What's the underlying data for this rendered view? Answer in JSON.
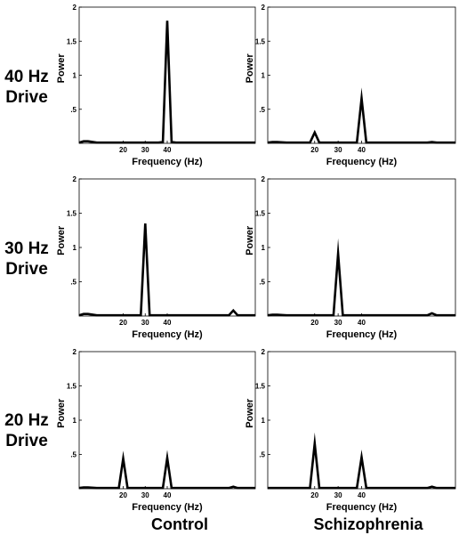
{
  "row_labels": [
    {
      "line1": "40 Hz",
      "line2": "Drive"
    },
    {
      "line1": "30 Hz",
      "line2": "Drive"
    },
    {
      "line1": "20 Hz",
      "line2": "Drive"
    }
  ],
  "column_labels": [
    "Control",
    "Schizophrenia"
  ],
  "chart_data": [
    {
      "type": "line",
      "panel": "40 Hz Drive / Control",
      "xlabel": "Frequency (Hz)",
      "ylabel": "Power",
      "xlim": [
        0,
        80
      ],
      "ylim": [
        0,
        2
      ],
      "xticks": [
        20,
        30,
        40
      ],
      "yticks": [
        0.5,
        1,
        1.5,
        2
      ],
      "ytick_labels": [
        ".5",
        "1",
        "1.5",
        "2"
      ],
      "grid": false,
      "x": [
        0,
        2,
        4,
        8,
        36,
        38,
        40,
        42,
        44,
        80
      ],
      "y": [
        0.01,
        0.03,
        0.03,
        0.01,
        0.01,
        0.02,
        1.8,
        0.02,
        0.01,
        0.01
      ]
    },
    {
      "type": "line",
      "panel": "40 Hz Drive / Schizophrenia",
      "xlabel": "Frequency (Hz)",
      "ylabel": "Power",
      "xlim": [
        0,
        80
      ],
      "ylim": [
        0,
        2
      ],
      "xticks": [
        20,
        30,
        40
      ],
      "yticks": [
        0.5,
        1,
        1.5,
        2
      ],
      "ytick_labels": [
        ".5",
        "1",
        "1.5",
        "2"
      ],
      "grid": false,
      "x": [
        0,
        2,
        4,
        8,
        18,
        20,
        22,
        38,
        40,
        42,
        68,
        70,
        72,
        80
      ],
      "y": [
        0.01,
        0.02,
        0.02,
        0.01,
        0.01,
        0.16,
        0.01,
        0.01,
        0.66,
        0.01,
        0.01,
        0.02,
        0.01,
        0.01
      ]
    },
    {
      "type": "line",
      "panel": "30 Hz Drive / Control",
      "xlabel": "Frequency (Hz)",
      "ylabel": "Power",
      "xlim": [
        0,
        80
      ],
      "ylim": [
        0,
        2
      ],
      "xticks": [
        20,
        30,
        40
      ],
      "yticks": [
        0.5,
        1,
        1.5,
        2
      ],
      "ytick_labels": [
        ".5",
        "1",
        "1.5",
        "2"
      ],
      "grid": false,
      "x": [
        0,
        2,
        4,
        8,
        28,
        30,
        32,
        68,
        70,
        72,
        80
      ],
      "y": [
        0.01,
        0.03,
        0.03,
        0.01,
        0.01,
        1.35,
        0.01,
        0.01,
        0.08,
        0.01,
        0.01
      ]
    },
    {
      "type": "line",
      "panel": "30 Hz Drive / Schizophrenia",
      "xlabel": "Frequency (Hz)",
      "ylabel": "Power",
      "xlim": [
        0,
        80
      ],
      "ylim": [
        0,
        2
      ],
      "xticks": [
        20,
        30,
        40
      ],
      "yticks": [
        0.5,
        1,
        1.5,
        2
      ],
      "ytick_labels": [
        ".5",
        "1",
        "1.5",
        "2"
      ],
      "grid": false,
      "x": [
        0,
        2,
        4,
        8,
        28,
        30,
        32,
        68,
        70,
        72,
        80
      ],
      "y": [
        0.01,
        0.02,
        0.02,
        0.01,
        0.01,
        0.91,
        0.01,
        0.01,
        0.04,
        0.01,
        0.01
      ]
    },
    {
      "type": "line",
      "panel": "20 Hz Drive / Control",
      "xlabel": "Frequency (Hz)",
      "ylabel": "Power",
      "xlim": [
        0,
        80
      ],
      "ylim": [
        0,
        2
      ],
      "xticks": [
        20,
        30,
        40
      ],
      "yticks": [
        0.5,
        1,
        1.5,
        2
      ],
      "ytick_labels": [
        ".5",
        "1",
        "1.5",
        "2"
      ],
      "grid": false,
      "x": [
        0,
        2,
        4,
        8,
        18,
        20,
        22,
        38,
        40,
        42,
        68,
        70,
        72,
        80
      ],
      "y": [
        0.01,
        0.02,
        0.02,
        0.01,
        0.01,
        0.44,
        0.01,
        0.01,
        0.45,
        0.01,
        0.01,
        0.03,
        0.01,
        0.01
      ]
    },
    {
      "type": "line",
      "panel": "20 Hz Drive / Schizophrenia",
      "xlabel": "Frequency (Hz)",
      "ylabel": "Power",
      "xlim": [
        0,
        80
      ],
      "ylim": [
        0,
        2
      ],
      "xticks": [
        20,
        30,
        40
      ],
      "yticks": [
        0.5,
        1,
        1.5,
        2
      ],
      "ytick_labels": [
        ".5",
        "1",
        "1.5",
        "2"
      ],
      "grid": false,
      "x": [
        0,
        2,
        4,
        8,
        18,
        20,
        22,
        38,
        40,
        42,
        68,
        70,
        72,
        80
      ],
      "y": [
        0.01,
        0.01,
        0.01,
        0.01,
        0.01,
        0.66,
        0.01,
        0.01,
        0.46,
        0.01,
        0.01,
        0.03,
        0.01,
        0.01
      ]
    }
  ]
}
